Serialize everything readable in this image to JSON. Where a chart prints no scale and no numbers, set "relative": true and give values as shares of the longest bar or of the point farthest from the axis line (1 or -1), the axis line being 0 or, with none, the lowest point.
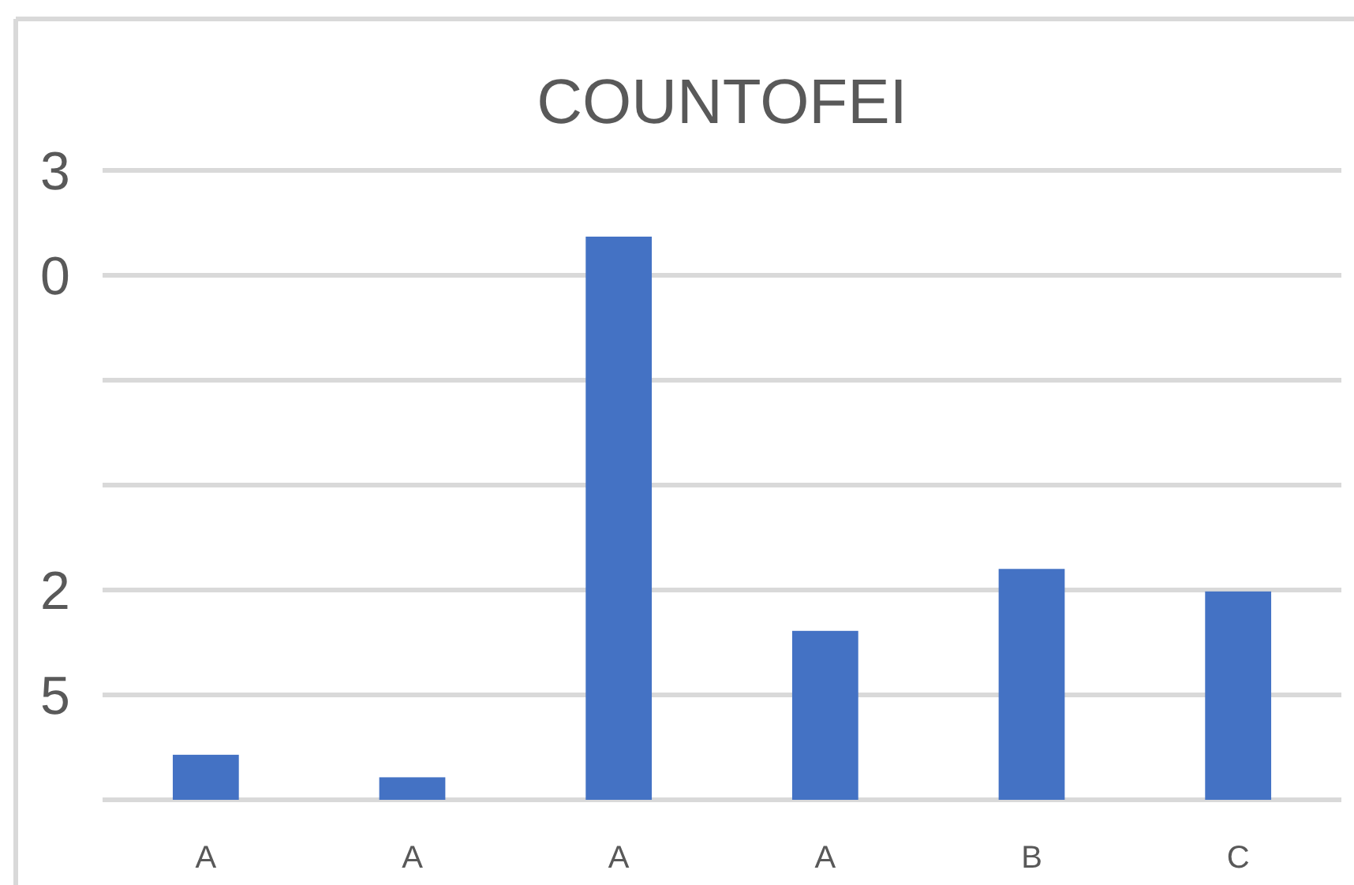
{
  "chart_data": {
    "type": "bar",
    "title": "COUNTOFEI",
    "relative": true,
    "grid": true,
    "categories": [
      "A",
      "A",
      "A",
      "A",
      "B",
      "C"
    ],
    "values": [
      0.08,
      0.04,
      1,
      0.3,
      0.41,
      0.37
    ],
    "color": "#4472c4",
    "annotations": [
      "3",
      "0",
      "2",
      "5"
    ]
  }
}
